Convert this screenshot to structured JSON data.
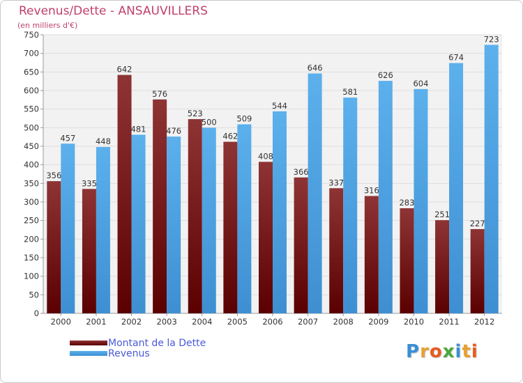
{
  "title": "Revenus/Dette - ANSAUVILLERS",
  "subtitle": "(en milliers d'€)",
  "colors": {
    "title": "#c0406a",
    "dette_dark": "#5a0000",
    "dette_light": "#8e3434",
    "revenus_dark": "#3e8fd2",
    "revenus_light": "#5cb0ec",
    "grid": "#dddddd",
    "plot_bg": "#f2f2f2"
  },
  "logo": {
    "text": "Proxiti",
    "letter_colors": [
      "#3a8fd6",
      "#e8a030",
      "#e85a20",
      "#4aa83a",
      "#3a8fd6",
      "#e8a030",
      "#e85a20"
    ]
  },
  "chart_data": {
    "type": "bar",
    "title": "Revenus/Dette - ANSAUVILLERS",
    "subtitle": "(en milliers d'€)",
    "categories": [
      "2000",
      "2001",
      "2002",
      "2003",
      "2004",
      "2005",
      "2006",
      "2007",
      "2008",
      "2009",
      "2010",
      "2011",
      "2012"
    ],
    "series": [
      {
        "name": "Montant de la Dette",
        "values": [
          356,
          335,
          642,
          576,
          523,
          462,
          408,
          366,
          337,
          316,
          283,
          251,
          227
        ]
      },
      {
        "name": "Revenus",
        "values": [
          457,
          448,
          481,
          476,
          500,
          509,
          544,
          646,
          581,
          626,
          604,
          674,
          723
        ]
      }
    ],
    "ylim": [
      0,
      750
    ],
    "ytick_step": 50,
    "grid": true,
    "legend_position": "bottom-left"
  }
}
